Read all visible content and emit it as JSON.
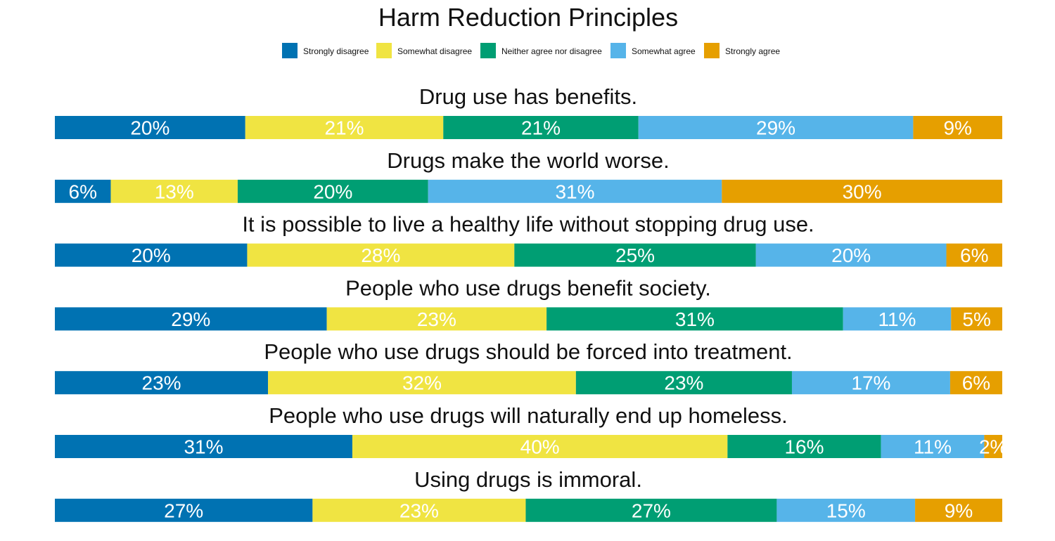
{
  "chart_data": {
    "type": "bar",
    "orientation": "horizontal",
    "stacked": "100%",
    "title": "Harm Reduction Principles",
    "legend_position": "top",
    "grid": false,
    "series": [
      {
        "name": "Strongly disagree",
        "color": "#0072B2"
      },
      {
        "name": "Somewhat disagree",
        "color": "#F0E442"
      },
      {
        "name": "Neither agree nor disagree",
        "color": "#009E73"
      },
      {
        "name": "Somewhat agree",
        "color": "#56B4E9"
      },
      {
        "name": "Strongly agree",
        "color": "#E69F00"
      }
    ],
    "categories": [
      {
        "statement": "Drug use has benefits.",
        "values": [
          20.1,
          20.9,
          20.6,
          29.0,
          9.4
        ],
        "labels": [
          "20%",
          "21%",
          "21%",
          "29%",
          "9%"
        ]
      },
      {
        "statement": "Drugs make the world worse.",
        "values": [
          5.9,
          13.4,
          20.1,
          31.0,
          29.6
        ],
        "labels": [
          "6%",
          "13%",
          "20%",
          "31%",
          "30%"
        ]
      },
      {
        "statement": "It is possible to live a healthy life without stopping drug use.",
        "values": [
          20.3,
          28.2,
          25.5,
          20.1,
          5.9
        ],
        "labels": [
          "20%",
          "28%",
          "25%",
          "20%",
          "6%"
        ]
      },
      {
        "statement": "People who use drugs benefit society.",
        "values": [
          28.7,
          23.2,
          31.3,
          11.4,
          5.4
        ],
        "labels": [
          "29%",
          "23%",
          "31%",
          "11%",
          "5%"
        ]
      },
      {
        "statement": "People who use drugs should be forced into treatment.",
        "values": [
          22.5,
          32.5,
          22.8,
          16.7,
          5.5
        ],
        "labels": [
          "23%",
          "32%",
          "23%",
          "17%",
          "6%"
        ]
      },
      {
        "statement": "People who use drugs will naturally end up homeless.",
        "values": [
          31.4,
          39.6,
          16.2,
          10.9,
          1.9
        ],
        "labels": [
          "31%",
          "40%",
          "16%",
          "11%",
          "2%"
        ]
      },
      {
        "statement": "Using drugs is immoral.",
        "values": [
          27.2,
          22.5,
          26.5,
          14.6,
          9.2
        ],
        "labels": [
          "27%",
          "23%",
          "27%",
          "15%",
          "9%"
        ]
      }
    ]
  }
}
